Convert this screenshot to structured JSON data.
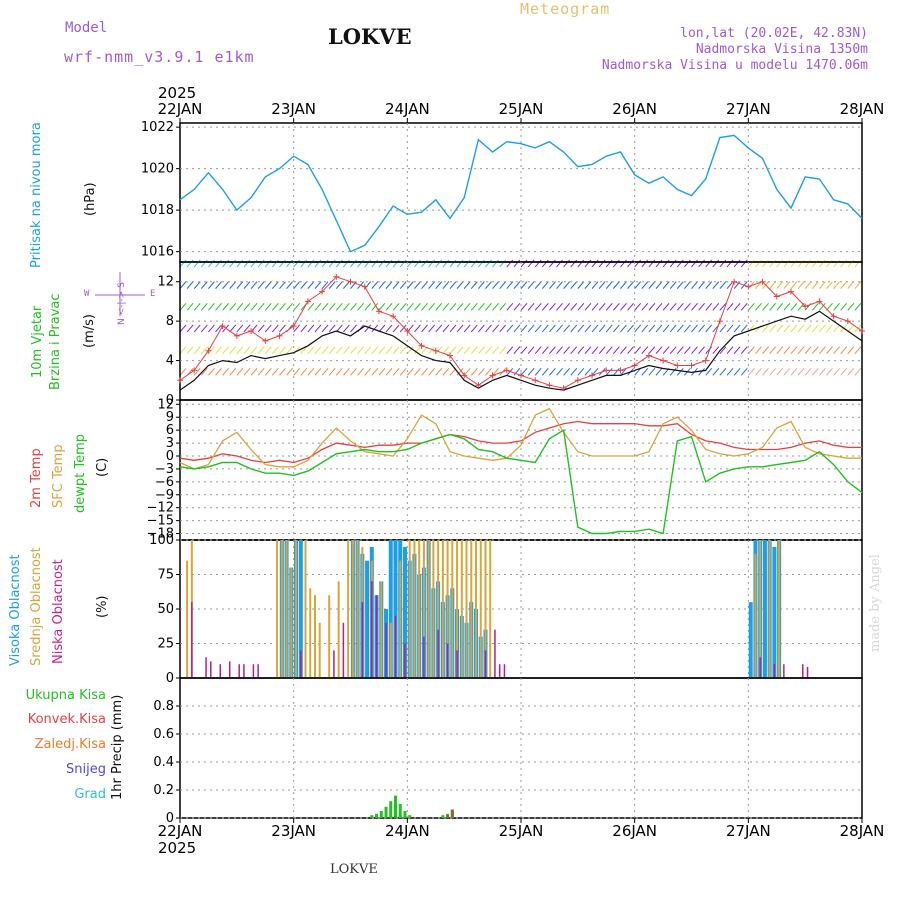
{
  "header": {
    "model_label": "Model",
    "model_name": "wrf-nmm_v3.9.1 e1km",
    "station": "LOKVE",
    "meteogram": "Meteogram",
    "lonlat": "lon,lat (20.02E, 42.83N)",
    "elevation": "Nadmorska Visina 1350m",
    "model_elevation": "Nadmorska Visina u modelu 1470.06m"
  },
  "footer": {
    "station": "LOKVE",
    "watermark": "made by Angel"
  },
  "axis": {
    "year_top": "2025",
    "year_bottom": "2025",
    "days": [
      "22JAN",
      "23JAN",
      "24JAN",
      "25JAN",
      "26JAN",
      "27JAN",
      "28JAN"
    ]
  },
  "labels": {
    "pressure": {
      "name": "Pritisak na nivou mora",
      "unit": "(hPa)"
    },
    "wind": {
      "name1": "10m Vjetar",
      "name2": "Brzina i Pravac",
      "unit": "(m/s)",
      "compass_w": "W",
      "compass_e": "E",
      "compass_ns": "N <-|-> S"
    },
    "temp": {
      "t2m": "2m Temp",
      "sfc": "SFC Temp",
      "dew": "dewpt Temp",
      "unit": "(C)"
    },
    "cloud": {
      "high": "Visoka Oblacnost",
      "mid": "Srednja Oblacnost",
      "low": "Niska Oblacnost",
      "unit": "(%)"
    },
    "precip": {
      "total": "Ukupna Kisa",
      "conv": "Konvek.Kisa",
      "ice": "Zaledj.Kisa",
      "snow": "Snijeg",
      "graup": "Grad",
      "unit": "1hr Precip (mm)"
    }
  },
  "colors": {
    "pressure": "#1e9ee8",
    "t2m": "#e84040",
    "sfc": "#d9a53a",
    "dew": "#22c022",
    "cloud_high": "#1e9ee8",
    "cloud_mid": "#d9a53a",
    "cloud_low": "#b0208a",
    "precip_total": "#22c022",
    "precip_ice": "#8b6a3a",
    "label_green": "#22c022",
    "label_red": "#e84040",
    "label_orange": "#f07a2a",
    "label_blue": "#4a4ae0",
    "label_cyan": "#30c0c0",
    "label_magenta": "#d0208a",
    "label_yellow": "#d9a53a"
  },
  "chart_data": [
    {
      "type": "line",
      "name": "pressure",
      "ylim": [
        1015.5,
        1022.2
      ],
      "yticks": [
        1016,
        1018,
        1020,
        1022
      ],
      "x": [
        0,
        3,
        6,
        9,
        12,
        15,
        18,
        21,
        24,
        27,
        30,
        33,
        36,
        39,
        42,
        45,
        48,
        51,
        54,
        57,
        60,
        63,
        66,
        69,
        72,
        75,
        78,
        81,
        84,
        87,
        90,
        93,
        96,
        99,
        102,
        105,
        108,
        111,
        114,
        117,
        120,
        123,
        126,
        129,
        132,
        135,
        138,
        141,
        144
      ],
      "values": [
        1018.5,
        1019.0,
        1019.8,
        1019.0,
        1018.0,
        1018.6,
        1019.6,
        1020.0,
        1020.6,
        1020.2,
        1019.0,
        1017.5,
        1016.0,
        1016.3,
        1017.2,
        1018.2,
        1017.8,
        1017.9,
        1018.5,
        1017.6,
        1018.6,
        1021.4,
        1020.8,
        1021.3,
        1021.2,
        1021.0,
        1021.3,
        1020.8,
        1020.1,
        1020.2,
        1020.6,
        1020.8,
        1019.7,
        1019.3,
        1019.6,
        1019.0,
        1018.7,
        1019.5,
        1021.5,
        1021.6,
        1021.0,
        1020.5,
        1019.0,
        1018.1,
        1019.6,
        1019.5,
        1018.5,
        1018.3,
        1017.6
      ]
    },
    {
      "type": "line",
      "name": "wind",
      "ylim": [
        0,
        14
      ],
      "yticks": [
        0,
        4,
        8,
        12
      ],
      "series": [
        {
          "name": "speed",
          "x": [
            0,
            3,
            6,
            9,
            12,
            15,
            18,
            21,
            24,
            27,
            30,
            33,
            36,
            39,
            42,
            45,
            48,
            51,
            54,
            57,
            60,
            63,
            66,
            69,
            72,
            75,
            78,
            81,
            84,
            87,
            90,
            93,
            96,
            99,
            102,
            105,
            108,
            111,
            114,
            117,
            120,
            123,
            126,
            129,
            132,
            135,
            138,
            141,
            144
          ],
          "values": [
            1.0,
            2.0,
            3.5,
            4.0,
            3.8,
            4.5,
            4.2,
            4.5,
            4.8,
            5.5,
            6.5,
            7.0,
            6.5,
            7.5,
            7.0,
            6.5,
            5.5,
            4.5,
            4.0,
            3.8,
            2.0,
            1.2,
            2.0,
            2.5,
            2.0,
            1.5,
            1.2,
            1.0,
            1.5,
            2.0,
            2.5,
            2.5,
            3.0,
            3.5,
            3.2,
            3.0,
            2.8,
            3.0,
            5.0,
            6.5,
            7.0,
            7.5,
            8.0,
            8.5,
            8.2,
            9.0,
            8.0,
            7.0,
            6.0
          ]
        },
        {
          "name": "gust",
          "x": [
            0,
            3,
            6,
            9,
            12,
            15,
            18,
            21,
            24,
            27,
            30,
            33,
            36,
            39,
            42,
            45,
            48,
            51,
            54,
            57,
            60,
            63,
            66,
            69,
            72,
            75,
            78,
            81,
            84,
            87,
            90,
            93,
            96,
            99,
            102,
            105,
            108,
            111,
            114,
            117,
            120,
            123,
            126,
            129,
            132,
            135,
            138,
            141,
            144
          ],
          "values": [
            2.0,
            3.0,
            5.0,
            7.5,
            6.5,
            7.0,
            6.0,
            6.5,
            7.5,
            10.0,
            11.0,
            12.5,
            12.0,
            11.5,
            9.0,
            8.5,
            7.0,
            5.5,
            5.0,
            4.5,
            2.5,
            1.5,
            2.5,
            3.0,
            2.5,
            2.0,
            1.5,
            1.2,
            2.0,
            2.5,
            3.0,
            3.0,
            3.5,
            4.5,
            4.0,
            3.5,
            3.5,
            4.0,
            8.0,
            12.0,
            11.5,
            12.0,
            10.5,
            11.0,
            9.5,
            10.0,
            8.5,
            8.0,
            7.0
          ]
        }
      ]
    },
    {
      "type": "line",
      "name": "temperature",
      "ylim": [
        -19.5,
        13
      ],
      "yticks": [
        -18,
        -15,
        -12,
        -9,
        -6,
        -3,
        0,
        3,
        6,
        9,
        12
      ],
      "series": [
        {
          "name": "t2m",
          "x": [
            0,
            3,
            6,
            9,
            12,
            15,
            18,
            21,
            24,
            27,
            30,
            33,
            36,
            39,
            42,
            45,
            48,
            51,
            54,
            57,
            60,
            63,
            66,
            69,
            72,
            75,
            78,
            81,
            84,
            87,
            90,
            93,
            96,
            99,
            102,
            105,
            108,
            111,
            114,
            117,
            120,
            123,
            126,
            129,
            132,
            135,
            138,
            141,
            144
          ],
          "values": [
            -0.5,
            -1.0,
            -0.5,
            0.5,
            0.0,
            -1.0,
            -1.5,
            -1.0,
            -1.5,
            -0.5,
            1.5,
            3.0,
            2.5,
            2.0,
            2.5,
            2.5,
            3.0,
            3.0,
            4.0,
            5.0,
            4.5,
            3.5,
            3.0,
            3.0,
            3.5,
            5.5,
            6.5,
            7.5,
            8.0,
            7.5,
            7.5,
            7.5,
            7.5,
            7.0,
            7.0,
            7.5,
            5.0,
            3.5,
            3.0,
            2.0,
            1.5,
            1.5,
            1.5,
            2.0,
            3.0,
            3.5,
            2.5,
            2.0,
            2.0
          ]
        },
        {
          "name": "sfc",
          "x": [
            0,
            3,
            6,
            9,
            12,
            15,
            18,
            21,
            24,
            27,
            30,
            33,
            36,
            39,
            42,
            45,
            48,
            51,
            54,
            57,
            60,
            63,
            66,
            69,
            72,
            75,
            78,
            81,
            84,
            87,
            90,
            93,
            96,
            99,
            102,
            105,
            108,
            111,
            114,
            117,
            120,
            123,
            126,
            129,
            132,
            135,
            138,
            141,
            144
          ],
          "values": [
            -1.5,
            -3.0,
            -2.0,
            3.5,
            5.5,
            1.5,
            -2.0,
            -2.5,
            -2.5,
            -1.0,
            3.0,
            6.5,
            3.5,
            1.0,
            0.5,
            0.0,
            4.0,
            9.5,
            7.5,
            1.0,
            0.0,
            -0.5,
            -1.0,
            -0.5,
            2.5,
            9.5,
            11.0,
            5.5,
            1.0,
            0.0,
            0.0,
            0.0,
            0.0,
            1.0,
            7.5,
            9.0,
            6.0,
            1.5,
            0.5,
            0.0,
            0.5,
            2.0,
            6.5,
            8.0,
            2.0,
            0.5,
            0.0,
            -0.5,
            -0.5
          ]
        },
        {
          "name": "dew",
          "x": [
            0,
            3,
            6,
            9,
            12,
            15,
            18,
            21,
            24,
            27,
            30,
            33,
            36,
            39,
            42,
            45,
            48,
            51,
            54,
            57,
            60,
            63,
            66,
            69,
            72,
            75,
            78,
            81,
            84,
            87,
            90,
            93,
            96,
            99,
            102,
            105,
            108,
            111,
            114,
            117,
            120,
            123,
            126,
            129,
            132,
            135,
            138,
            141,
            144
          ],
          "values": [
            -2.5,
            -3.0,
            -2.5,
            -1.5,
            -1.5,
            -3.0,
            -4.0,
            -4.0,
            -4.5,
            -3.5,
            -1.5,
            0.5,
            1.0,
            1.5,
            1.0,
            1.0,
            1.5,
            3.0,
            4.0,
            5.0,
            4.0,
            1.5,
            1.0,
            -0.5,
            -1.0,
            -1.5,
            4.0,
            6.0,
            -16.5,
            -18.0,
            -18.0,
            -17.5,
            -17.5,
            -17.0,
            -18.0,
            3.5,
            4.5,
            -6.0,
            -4.0,
            -3.0,
            -2.5,
            -2.5,
            -2.0,
            -1.5,
            -1.0,
            1.0,
            -2.0,
            -6.0,
            -8.5
          ]
        }
      ]
    },
    {
      "type": "bar",
      "name": "cloud",
      "ylim": [
        0,
        100
      ],
      "yticks": [
        0,
        25,
        50,
        75,
        100
      ],
      "series": [
        {
          "name": "high",
          "x": [
            21,
            22,
            23,
            24,
            25,
            36,
            37,
            38,
            39,
            40,
            41,
            42,
            43,
            44,
            45,
            46,
            47,
            48,
            49,
            50,
            51,
            52,
            53,
            54,
            55,
            56,
            57,
            58,
            59,
            60,
            61,
            62,
            63,
            64,
            120,
            121,
            122,
            123,
            124,
            125,
            126
          ],
          "values": [
            100,
            100,
            80,
            100,
            100,
            100,
            100,
            90,
            85,
            95,
            60,
            70,
            50,
            100,
            100,
            100,
            95,
            85,
            90,
            75,
            80,
            100,
            65,
            70,
            55,
            60,
            65,
            50,
            45,
            40,
            55,
            50,
            30,
            35,
            55,
            100,
            100,
            100,
            100,
            95,
            100
          ]
        },
        {
          "name": "mid",
          "x": [
            1,
            2,
            20,
            21,
            22,
            23,
            24,
            26,
            27,
            28,
            29,
            31,
            33,
            35,
            36,
            37,
            38,
            40,
            42,
            44,
            46,
            48,
            49,
            50,
            51,
            52,
            53,
            54,
            55,
            56,
            57,
            58,
            59,
            60,
            61,
            62,
            63,
            64,
            65,
            121,
            122,
            124,
            126
          ],
          "values": [
            85,
            100,
            100,
            100,
            100,
            80,
            100,
            100,
            65,
            60,
            40,
            60,
            70,
            100,
            100,
            100,
            95,
            85,
            70,
            40,
            85,
            100,
            100,
            100,
            100,
            100,
            100,
            100,
            100,
            100,
            100,
            100,
            100,
            100,
            100,
            100,
            100,
            100,
            100,
            90,
            100,
            100,
            100
          ]
        },
        {
          "name": "low",
          "x": [
            2,
            5,
            6,
            8,
            10,
            12,
            13,
            15,
            16,
            25,
            32,
            34,
            38,
            40,
            41,
            43,
            45,
            47,
            51,
            54,
            56,
            58,
            64,
            66,
            67,
            68,
            122,
            125,
            127,
            131,
            132
          ],
          "values": [
            55,
            15,
            12,
            10,
            12,
            10,
            10,
            10,
            10,
            20,
            20,
            40,
            55,
            70,
            60,
            40,
            45,
            25,
            30,
            35,
            25,
            20,
            20,
            35,
            10,
            10,
            15,
            10,
            10,
            10,
            8
          ]
        }
      ]
    },
    {
      "type": "bar",
      "name": "precip",
      "ylim": [
        0,
        1.0
      ],
      "yticks": [
        0,
        0.2,
        0.4,
        0.6,
        0.8
      ],
      "series": [
        {
          "name": "total",
          "x": [
            40,
            41,
            42,
            43,
            44,
            45,
            46,
            47,
            48,
            55,
            56,
            57
          ],
          "values": [
            0.02,
            0.03,
            0.05,
            0.08,
            0.12,
            0.16,
            0.1,
            0.05,
            0.02,
            0.02,
            0.03,
            0.06
          ]
        },
        {
          "name": "ice",
          "x": [
            56,
            57
          ],
          "values": [
            0.02,
            0.06
          ]
        }
      ]
    }
  ]
}
